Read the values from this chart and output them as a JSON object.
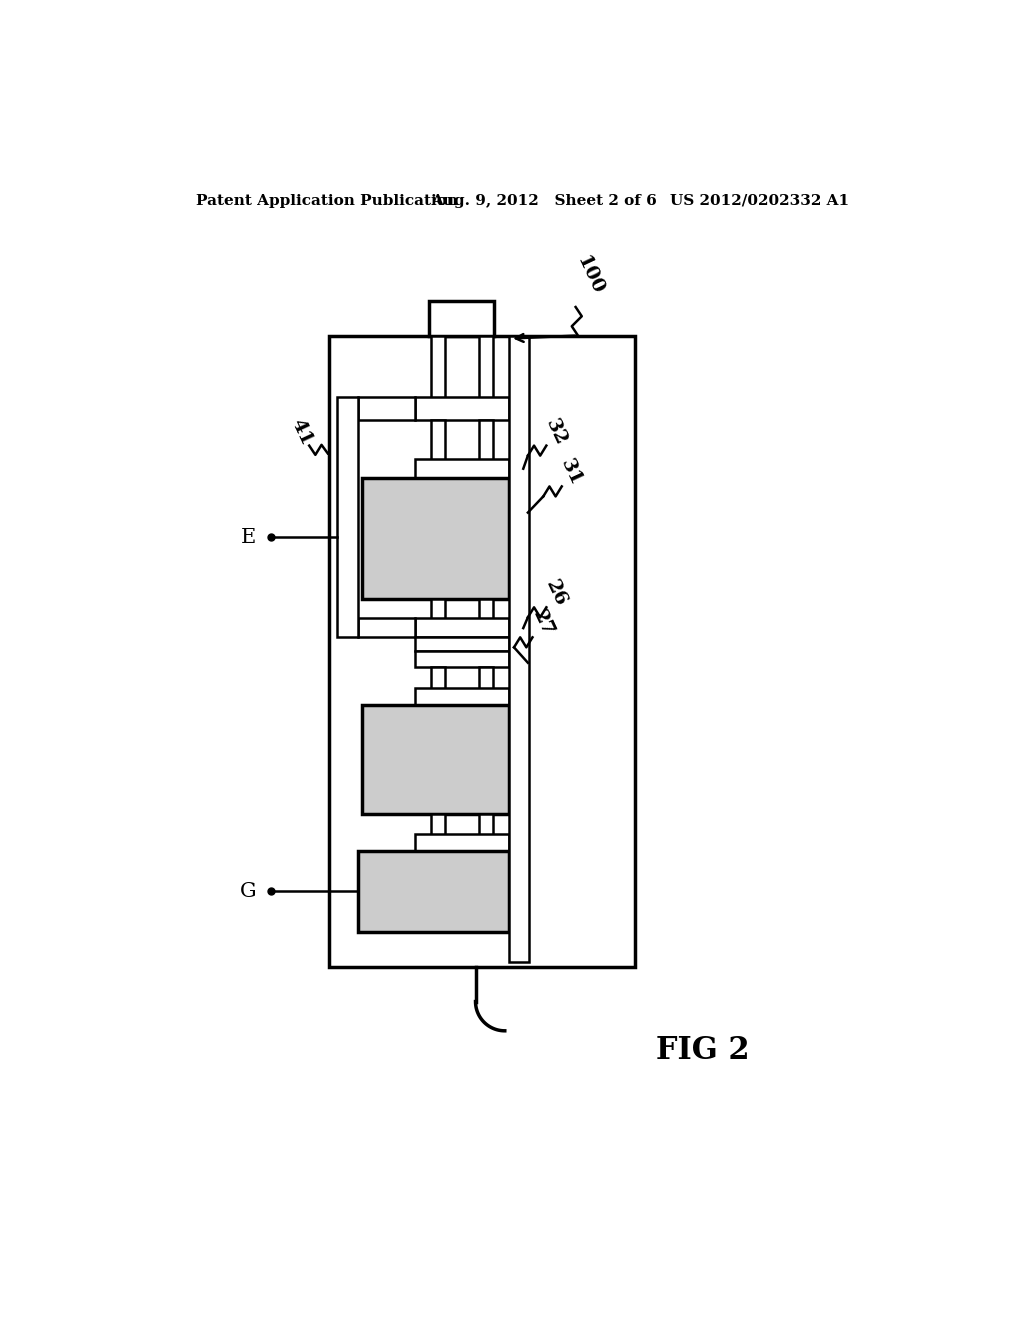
{
  "bg_color": "#ffffff",
  "header_left": "Patent Application Publication",
  "header_mid": "Aug. 9, 2012   Sheet 2 of 6",
  "header_right": "US 2012/0202332 A1",
  "fig_label": "FIG 2",
  "label_100": "100",
  "label_41": "41",
  "label_32": "32",
  "label_31": "31",
  "label_26": "26",
  "label_27": "27",
  "label_E": "E",
  "label_G": "G",
  "line_color": "#000000",
  "lw": 1.8,
  "lw_thick": 2.5
}
